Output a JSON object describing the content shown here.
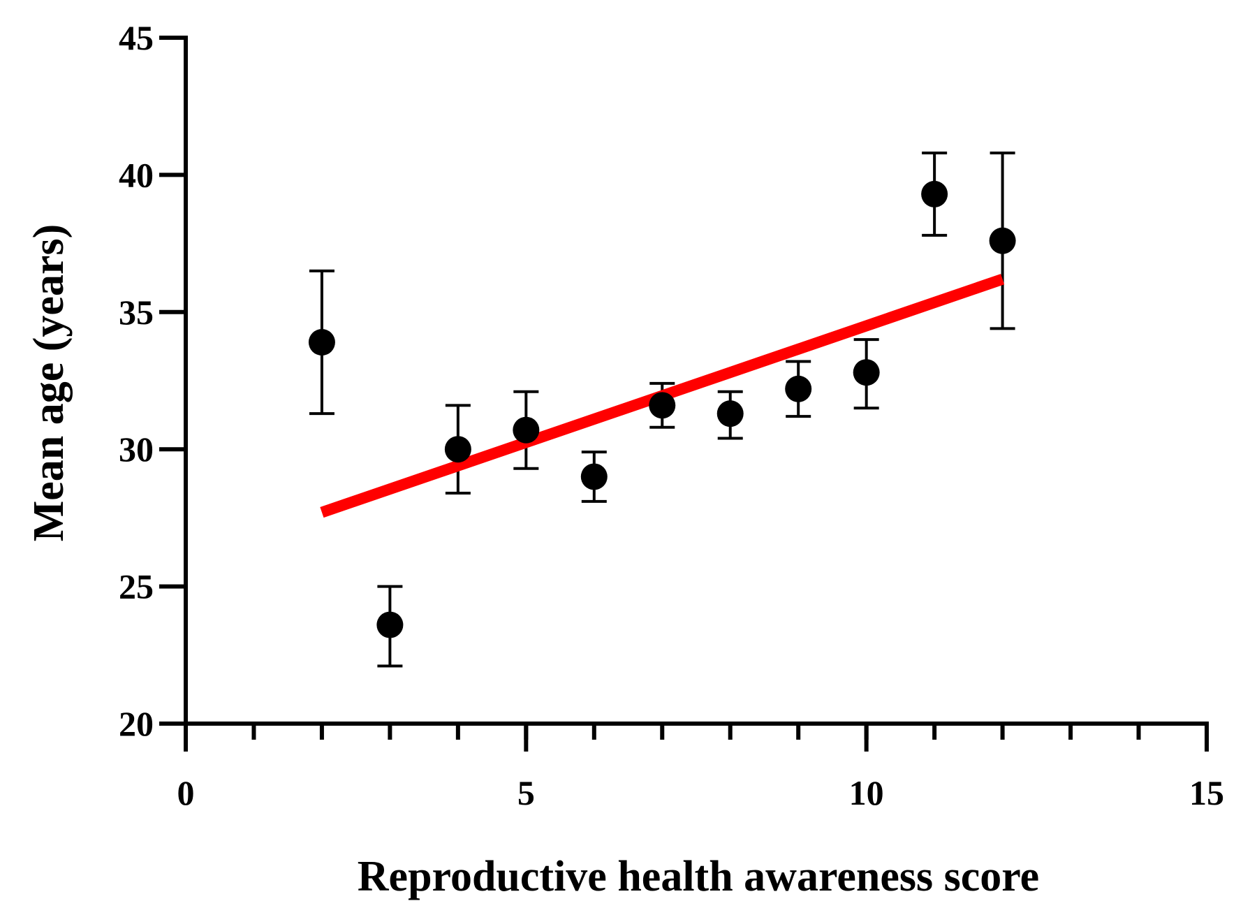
{
  "chart_data": {
    "type": "scatter",
    "title": "",
    "xlabel": "Reproductive health awareness score",
    "ylabel": "Mean age (years)",
    "xlim": [
      0,
      15
    ],
    "ylim": [
      20,
      45
    ],
    "x_ticks": [
      0,
      5,
      10,
      15
    ],
    "x_minor_step": 1,
    "y_ticks": [
      20,
      25,
      30,
      35,
      40,
      45
    ],
    "x_tick_labels": [
      "0",
      "5",
      "10",
      "15"
    ],
    "y_tick_labels": [
      "20",
      "25",
      "30",
      "35",
      "40",
      "45"
    ],
    "grid": false,
    "legend": "none",
    "series": [
      {
        "name": "Mean age",
        "type": "scatter_errorbar",
        "color": "#000000",
        "points": [
          {
            "x": 2,
            "y": 33.9,
            "lo": 31.3,
            "hi": 36.5
          },
          {
            "x": 3,
            "y": 23.6,
            "lo": 22.1,
            "hi": 25.0
          },
          {
            "x": 4,
            "y": 30.0,
            "lo": 28.4,
            "hi": 31.6
          },
          {
            "x": 5,
            "y": 30.7,
            "lo": 29.3,
            "hi": 32.1
          },
          {
            "x": 6,
            "y": 29.0,
            "lo": 28.1,
            "hi": 29.9
          },
          {
            "x": 7,
            "y": 31.6,
            "lo": 30.8,
            "hi": 32.4
          },
          {
            "x": 8,
            "y": 31.3,
            "lo": 30.4,
            "hi": 32.1
          },
          {
            "x": 9,
            "y": 32.2,
            "lo": 31.2,
            "hi": 33.2
          },
          {
            "x": 10,
            "y": 32.8,
            "lo": 31.5,
            "hi": 34.0
          },
          {
            "x": 11,
            "y": 39.3,
            "lo": 37.8,
            "hi": 40.8
          },
          {
            "x": 12,
            "y": 37.6,
            "lo": 34.4,
            "hi": 40.8
          }
        ]
      },
      {
        "name": "Linear fit",
        "type": "line",
        "color": "#ff0000",
        "points": [
          {
            "x": 2,
            "y": 27.7
          },
          {
            "x": 12,
            "y": 36.2
          }
        ]
      }
    ]
  }
}
